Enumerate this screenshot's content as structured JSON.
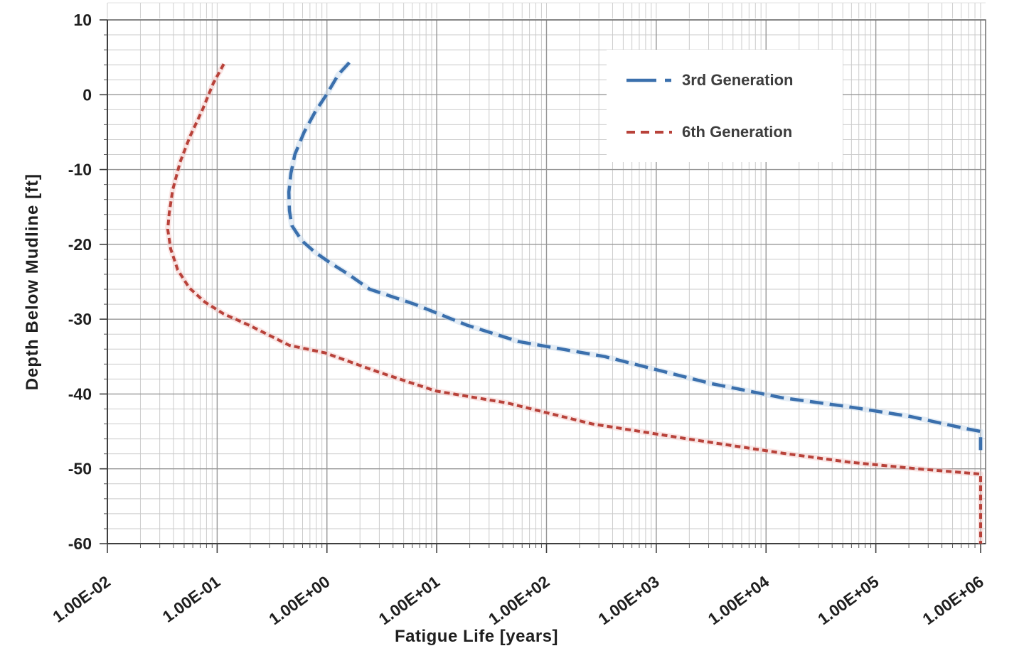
{
  "chart_data": {
    "type": "line",
    "title": "",
    "xlabel": "Fatigue Life [years]",
    "ylabel": "Depth Below Mudline [ft]",
    "x_scale": "log",
    "xlim": [
      0.01,
      1000000
    ],
    "ylim": [
      -60,
      10
    ],
    "x_tick_values": [
      0.01,
      0.1,
      1,
      10,
      100,
      1000,
      10000,
      100000,
      1000000
    ],
    "x_tick_labels": [
      "1.00E-02",
      "1.00E-01",
      "1.00E+00",
      "1.00E+01",
      "1.00E+02",
      "1.00E+03",
      "1.00E+04",
      "1.00E+05",
      "1.00E+06"
    ],
    "y_tick_values": [
      10,
      0,
      -10,
      -20,
      -30,
      -40,
      -50,
      -60
    ],
    "y_tick_labels": [
      "10",
      "0",
      "-10",
      "-20",
      "-30",
      "-40",
      "-50",
      "-60"
    ],
    "grid": {
      "vertical": "log-major-and-minor",
      "horizontal_minor_step_ft": 2,
      "horizontal_major_step_ft": 10
    },
    "legend_position": "top-right-inside",
    "series": [
      {
        "name": "3rd Generation",
        "color": "#3b70ad",
        "halo_color": "#c3d7ec",
        "dash": "long",
        "points": [
          [
            1.6,
            4.3
          ],
          [
            1.27,
            2.7
          ],
          [
            1.0,
            0.1
          ],
          [
            0.78,
            -2.3
          ],
          [
            0.62,
            -5.0
          ],
          [
            0.51,
            -8.0
          ],
          [
            0.47,
            -10.5
          ],
          [
            0.45,
            -13.0
          ],
          [
            0.455,
            -15.5
          ],
          [
            0.48,
            -17.5
          ],
          [
            0.59,
            -19.5
          ],
          [
            0.77,
            -21.0
          ],
          [
            1.08,
            -22.5
          ],
          [
            1.57,
            -24.0
          ],
          [
            2.45,
            -26.0
          ],
          [
            3.95,
            -27.0
          ],
          [
            6.3,
            -28.0
          ],
          [
            18.9,
            -30.8
          ],
          [
            56,
            -33.0
          ],
          [
            340,
            -35.0
          ],
          [
            3150,
            -38.6
          ],
          [
            14000,
            -40.5
          ],
          [
            56000,
            -41.7
          ],
          [
            205000,
            -43.0
          ],
          [
            650000,
            -44.6
          ],
          [
            1000000,
            -45.0
          ],
          [
            1000000,
            -47.5
          ]
        ]
      },
      {
        "name": "6th Generation",
        "color": "#b8423a",
        "halo_color": "#f3c8c5",
        "dash": "short",
        "points": [
          [
            0.115,
            4.1
          ],
          [
            0.092,
            1.5
          ],
          [
            0.074,
            -1.9
          ],
          [
            0.0565,
            -5.6
          ],
          [
            0.046,
            -9.0
          ],
          [
            0.0394,
            -12.7
          ],
          [
            0.0366,
            -15.8
          ],
          [
            0.0355,
            -18.0
          ],
          [
            0.0377,
            -20.6
          ],
          [
            0.0437,
            -23.4
          ],
          [
            0.0556,
            -25.8
          ],
          [
            0.077,
            -27.7
          ],
          [
            0.115,
            -29.3
          ],
          [
            0.195,
            -30.8
          ],
          [
            0.455,
            -33.5
          ],
          [
            0.96,
            -34.5
          ],
          [
            2.85,
            -37.0
          ],
          [
            9.8,
            -39.6
          ],
          [
            44,
            -41.2
          ],
          [
            260,
            -44.0
          ],
          [
            1930,
            -46.0
          ],
          [
            14000,
            -47.9
          ],
          [
            56000,
            -49.1
          ],
          [
            240000,
            -50.0
          ],
          [
            1000000,
            -50.7
          ],
          [
            1000000,
            -60.0
          ]
        ]
      }
    ]
  },
  "colors": {
    "background": "#ffffff",
    "minor_grid": "#cbcbcb",
    "major_grid": "#979797",
    "plot_border": "#6e6e6e",
    "axis_line": "#3f3f3f",
    "tick": "#555555",
    "tick_label_text": "#1f1f1f",
    "legend_text": "#3d3d3d"
  }
}
